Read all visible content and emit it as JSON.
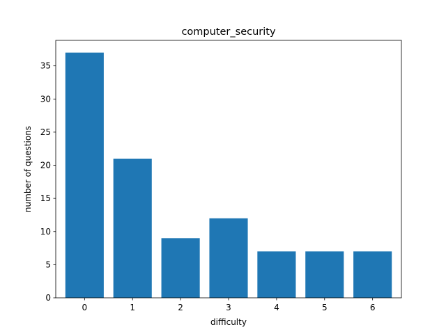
{
  "chart_data": {
    "type": "bar",
    "title": "computer_security",
    "xlabel": "difficulty",
    "ylabel": "number of questions",
    "categories": [
      "0",
      "1",
      "2",
      "3",
      "4",
      "5",
      "6"
    ],
    "values": [
      37,
      21,
      9,
      12,
      7,
      7,
      7
    ],
    "ylim": [
      0,
      38.85
    ],
    "yticks": [
      0,
      5,
      10,
      15,
      20,
      25,
      30,
      35
    ],
    "grid": false,
    "bar_color": "#1f77b4"
  }
}
